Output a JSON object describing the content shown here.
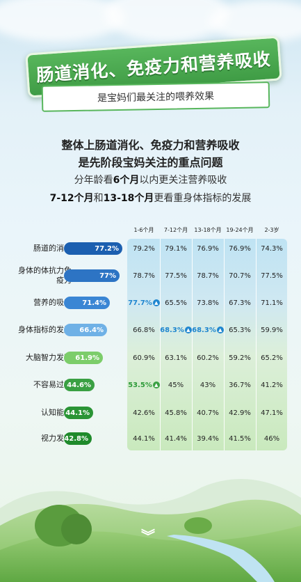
{
  "banner": {
    "title": "肠道消化、免疫力和营养吸收",
    "subtitle": "是宝妈们最关注的喂养效果"
  },
  "headline": {
    "line1": "整体上肠道消化、免疫力和营养吸收",
    "line2": "是先阶段宝妈关注的重点问题",
    "line3_pre": "分年龄看",
    "line3_bold": "6个月",
    "line3_post": "以内更关注营养吸收",
    "line4_b1": "7-12个月",
    "line4_mid": "和",
    "line4_b2": "13-18个月",
    "line4_post": "更看重身体指标的发展"
  },
  "columns": [
    "1-6个月",
    "7-12个月",
    "13-18个月",
    "19-24个月",
    "2-3岁"
  ],
  "colors": {
    "dark_blue": "#1b5fb0",
    "blue": "#3a86d4",
    "light_blue": "#6fb1e6",
    "light_green": "#7ccd6a",
    "green": "#3aa043",
    "dark_green": "#1f8a2b",
    "highlight_blue": "#1f86cf",
    "highlight_green": "#2f9b3a"
  },
  "rows": [
    {
      "label": "肠道的消化",
      "overall": "77.2%",
      "values": [
        "79.2%",
        "79.1%",
        "76.9%",
        "76.9%",
        "74.3%"
      ]
    },
    {
      "label": "身体的体抗力免疫力",
      "overall": "77%",
      "values": [
        "78.7%",
        "77.5%",
        "78.7%",
        "70.7%",
        "77.5%"
      ]
    },
    {
      "label": "营养的吸收",
      "overall": "71.4%",
      "values": [
        "77.7%",
        "65.5%",
        "73.8%",
        "67.3%",
        "71.1%"
      ]
    },
    {
      "label": "身体指标的发展",
      "overall": "66.4%",
      "values": [
        "66.8%",
        "68.3%",
        "68.3%",
        "65.3%",
        "59.9%"
      ]
    },
    {
      "label": "大脑智力发育",
      "overall": "61.9%",
      "values": [
        "60.9%",
        "63.1%",
        "60.2%",
        "59.2%",
        "65.2%"
      ]
    },
    {
      "label": "不容易过敏",
      "overall": "44.6%",
      "values": [
        "53.5%",
        "45%",
        "43%",
        "36.7%",
        "41.2%"
      ]
    },
    {
      "label": "认知能力",
      "overall": "44.1%",
      "values": [
        "42.6%",
        "45.8%",
        "40.7%",
        "42.9%",
        "47.1%"
      ]
    },
    {
      "label": "视力发育",
      "overall": "42.8%",
      "values": [
        "44.1%",
        "41.4%",
        "39.4%",
        "41.5%",
        "46%"
      ]
    }
  ],
  "icons": {
    "up_arrow": "up-arrow-icon",
    "scroll_down": "chevron-double-down-icon"
  }
}
